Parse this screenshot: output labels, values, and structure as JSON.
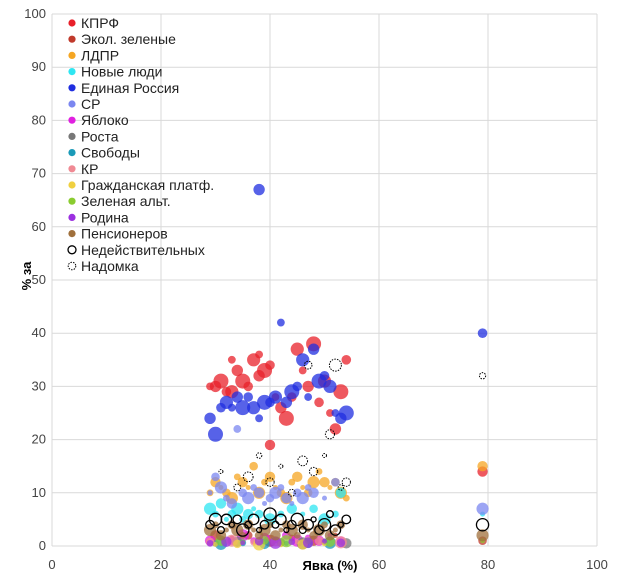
{
  "chart_data": {
    "type": "scatter",
    "title": "",
    "xlabel": "Явка (%)",
    "ylabel": "% за",
    "xlim": [
      0,
      100
    ],
    "ylim": [
      0,
      100
    ],
    "xticks": [
      0,
      20,
      40,
      60,
      80,
      100
    ],
    "yticks": [
      0,
      10,
      20,
      30,
      40,
      50,
      60,
      70,
      80,
      90,
      100
    ],
    "grid": true,
    "legend_position": "top-left",
    "series": [
      {
        "name": "КПРФ",
        "color": "#e8202a",
        "marker": "filled",
        "points": [
          [
            29,
            30
          ],
          [
            30,
            30
          ],
          [
            31,
            31
          ],
          [
            32,
            29
          ],
          [
            33,
            29
          ],
          [
            33,
            35
          ],
          [
            34,
            33
          ],
          [
            35,
            31
          ],
          [
            36,
            30
          ],
          [
            37,
            35
          ],
          [
            38,
            36
          ],
          [
            38,
            32
          ],
          [
            39,
            33
          ],
          [
            40,
            34
          ],
          [
            40,
            19
          ],
          [
            41,
            28
          ],
          [
            42,
            26
          ],
          [
            43,
            24
          ],
          [
            44,
            28
          ],
          [
            45,
            37
          ],
          [
            46,
            33
          ],
          [
            47,
            30
          ],
          [
            48,
            38
          ],
          [
            49,
            27
          ],
          [
            50,
            31
          ],
          [
            51,
            25
          ],
          [
            52,
            22
          ],
          [
            53,
            29
          ],
          [
            54,
            35
          ],
          [
            79,
            14
          ]
        ]
      },
      {
        "name": "Экол. зеленые",
        "color": "#c0392b",
        "marker": "filled",
        "points": [
          [
            30,
            2
          ],
          [
            33,
            1.5
          ],
          [
            36,
            2
          ],
          [
            40,
            1
          ],
          [
            44,
            1.5
          ],
          [
            48,
            1
          ],
          [
            52,
            2
          ],
          [
            79,
            1
          ]
        ]
      },
      {
        "name": "ЛДПР",
        "color": "#f5a623",
        "marker": "filled",
        "points": [
          [
            29,
            10
          ],
          [
            30,
            12
          ],
          [
            31,
            11
          ],
          [
            32,
            10
          ],
          [
            33,
            9
          ],
          [
            34,
            13
          ],
          [
            35,
            12
          ],
          [
            36,
            11
          ],
          [
            37,
            15
          ],
          [
            38,
            10
          ],
          [
            39,
            12
          ],
          [
            40,
            13
          ],
          [
            41,
            11
          ],
          [
            42,
            10
          ],
          [
            43,
            9
          ],
          [
            44,
            12
          ],
          [
            45,
            13
          ],
          [
            46,
            11
          ],
          [
            47,
            10
          ],
          [
            48,
            12
          ],
          [
            49,
            14
          ],
          [
            50,
            12
          ],
          [
            51,
            11
          ],
          [
            52,
            12
          ],
          [
            53,
            10
          ],
          [
            54,
            9
          ],
          [
            79,
            15
          ]
        ]
      },
      {
        "name": "Новые люди",
        "color": "#2ee6f2",
        "marker": "filled",
        "points": [
          [
            29,
            7
          ],
          [
            30,
            6
          ],
          [
            31,
            8
          ],
          [
            32,
            5
          ],
          [
            33,
            6
          ],
          [
            34,
            7
          ],
          [
            35,
            5
          ],
          [
            36,
            6
          ],
          [
            37,
            7
          ],
          [
            38,
            6
          ],
          [
            40,
            5
          ],
          [
            42,
            6
          ],
          [
            44,
            7
          ],
          [
            46,
            6
          ],
          [
            48,
            7
          ],
          [
            50,
            5
          ],
          [
            52,
            6
          ],
          [
            53,
            10
          ],
          [
            79,
            6
          ]
        ]
      },
      {
        "name": "Единая Россия",
        "color": "#1f2ee0",
        "marker": "filled",
        "points": [
          [
            29,
            24
          ],
          [
            30,
            21
          ],
          [
            31,
            26
          ],
          [
            32,
            27
          ],
          [
            33,
            26
          ],
          [
            34,
            28
          ],
          [
            35,
            26
          ],
          [
            36,
            28
          ],
          [
            37,
            26
          ],
          [
            38,
            24
          ],
          [
            38,
            67
          ],
          [
            39,
            27
          ],
          [
            40,
            27
          ],
          [
            41,
            28
          ],
          [
            42,
            42
          ],
          [
            43,
            27
          ],
          [
            44,
            29
          ],
          [
            45,
            30
          ],
          [
            46,
            35
          ],
          [
            47,
            28
          ],
          [
            48,
            37
          ],
          [
            49,
            31
          ],
          [
            50,
            32
          ],
          [
            51,
            30
          ],
          [
            52,
            25
          ],
          [
            53,
            24
          ],
          [
            54,
            25
          ],
          [
            79,
            40
          ]
        ]
      },
      {
        "name": "СР",
        "color": "#7b87f0",
        "marker": "filled",
        "points": [
          [
            29,
            10
          ],
          [
            30,
            13
          ],
          [
            31,
            11
          ],
          [
            32,
            9
          ],
          [
            33,
            8
          ],
          [
            34,
            22
          ],
          [
            35,
            10
          ],
          [
            36,
            9
          ],
          [
            37,
            11
          ],
          [
            38,
            10
          ],
          [
            39,
            8
          ],
          [
            40,
            9
          ],
          [
            41,
            10
          ],
          [
            42,
            11
          ],
          [
            43,
            9
          ],
          [
            44,
            8
          ],
          [
            45,
            10
          ],
          [
            46,
            9
          ],
          [
            47,
            11
          ],
          [
            48,
            10
          ],
          [
            50,
            9
          ],
          [
            52,
            12
          ],
          [
            79,
            7
          ]
        ]
      },
      {
        "name": "Яблоко",
        "color": "#e020e0",
        "marker": "filled",
        "points": [
          [
            29,
            1
          ],
          [
            31,
            1.5
          ],
          [
            33,
            1
          ],
          [
            35,
            2
          ],
          [
            37,
            1
          ],
          [
            39,
            1.5
          ],
          [
            41,
            1
          ],
          [
            43,
            2
          ],
          [
            45,
            1
          ],
          [
            47,
            1.5
          ],
          [
            49,
            1
          ],
          [
            51,
            2
          ],
          [
            53,
            1
          ]
        ]
      },
      {
        "name": "Роста",
        "color": "#777777",
        "marker": "filled",
        "points": [
          [
            30,
            0.5
          ],
          [
            34,
            0.8
          ],
          [
            38,
            0.5
          ],
          [
            42,
            0.7
          ],
          [
            46,
            0.5
          ],
          [
            50,
            0.8
          ],
          [
            54,
            0.5
          ]
        ]
      },
      {
        "name": "Свободы",
        "color": "#1a9ab8",
        "marker": "filled",
        "points": [
          [
            31,
            0.4
          ],
          [
            35,
            0.6
          ],
          [
            39,
            0.4
          ],
          [
            43,
            0.5
          ],
          [
            47,
            0.4
          ],
          [
            51,
            0.6
          ]
        ]
      },
      {
        "name": "КР",
        "color": "#f08a94",
        "marker": "filled",
        "points": [
          [
            29,
            0.8
          ],
          [
            33,
            1
          ],
          [
            37,
            0.7
          ],
          [
            41,
            0.9
          ],
          [
            45,
            0.8
          ],
          [
            49,
            1
          ],
          [
            53,
            0.7
          ]
        ]
      },
      {
        "name": "Гражданская платф.",
        "color": "#f0d040",
        "marker": "filled",
        "points": [
          [
            30,
            0.3
          ],
          [
            34,
            0.4
          ],
          [
            38,
            0.3
          ],
          [
            42,
            0.4
          ],
          [
            46,
            0.3
          ],
          [
            50,
            0.4
          ]
        ]
      },
      {
        "name": "Зеленая альт.",
        "color": "#8acc30",
        "marker": "filled",
        "points": [
          [
            31,
            1
          ],
          [
            35,
            0.8
          ],
          [
            39,
            1.1
          ],
          [
            43,
            0.9
          ],
          [
            47,
            1
          ],
          [
            51,
            0.8
          ],
          [
            79,
            1
          ]
        ]
      },
      {
        "name": "Родина",
        "color": "#9b30e0",
        "marker": "filled",
        "points": [
          [
            29,
            0.5
          ],
          [
            32,
            0.8
          ],
          [
            35,
            0.6
          ],
          [
            38,
            0.9
          ],
          [
            41,
            0.6
          ],
          [
            44,
            0.8
          ],
          [
            47,
            0.6
          ],
          [
            50,
            0.9
          ],
          [
            53,
            0.6
          ]
        ]
      },
      {
        "name": "Пенсионеров",
        "color": "#a0703c",
        "marker": "filled",
        "points": [
          [
            29,
            3
          ],
          [
            30,
            4
          ],
          [
            31,
            2
          ],
          [
            32,
            3
          ],
          [
            33,
            4
          ],
          [
            34,
            3
          ],
          [
            35,
            2
          ],
          [
            36,
            4
          ],
          [
            37,
            3
          ],
          [
            38,
            2
          ],
          [
            39,
            3
          ],
          [
            40,
            4
          ],
          [
            41,
            2
          ],
          [
            42,
            3
          ],
          [
            43,
            4
          ],
          [
            44,
            3
          ],
          [
            45,
            2
          ],
          [
            46,
            4
          ],
          [
            47,
            3
          ],
          [
            48,
            2
          ],
          [
            49,
            3
          ],
          [
            50,
            4
          ],
          [
            51,
            2
          ],
          [
            52,
            3
          ],
          [
            53,
            4
          ],
          [
            79,
            2
          ]
        ]
      },
      {
        "name": "Недействительных",
        "color": "#000000",
        "marker": "open",
        "points": [
          [
            29,
            4
          ],
          [
            30,
            5
          ],
          [
            31,
            3
          ],
          [
            32,
            5
          ],
          [
            33,
            4
          ],
          [
            34,
            5
          ],
          [
            35,
            3
          ],
          [
            36,
            4
          ],
          [
            37,
            5
          ],
          [
            38,
            3
          ],
          [
            39,
            4
          ],
          [
            40,
            6
          ],
          [
            41,
            4
          ],
          [
            42,
            5
          ],
          [
            43,
            3
          ],
          [
            44,
            4
          ],
          [
            45,
            5
          ],
          [
            46,
            3
          ],
          [
            47,
            4
          ],
          [
            48,
            5
          ],
          [
            49,
            3
          ],
          [
            50,
            4
          ],
          [
            51,
            6
          ],
          [
            52,
            3
          ],
          [
            53,
            4
          ],
          [
            54,
            5
          ],
          [
            79,
            4
          ]
        ]
      },
      {
        "name": "Надомка",
        "color": "#000000",
        "marker": "dashed",
        "points": [
          [
            31,
            14
          ],
          [
            34,
            11
          ],
          [
            36,
            13
          ],
          [
            38,
            17
          ],
          [
            40,
            12
          ],
          [
            42,
            15
          ],
          [
            44,
            10
          ],
          [
            46,
            16
          ],
          [
            47,
            34
          ],
          [
            48,
            14
          ],
          [
            50,
            17
          ],
          [
            51,
            21
          ],
          [
            52,
            34
          ],
          [
            53,
            11
          ],
          [
            54,
            12
          ],
          [
            79,
            32
          ]
        ]
      }
    ]
  }
}
